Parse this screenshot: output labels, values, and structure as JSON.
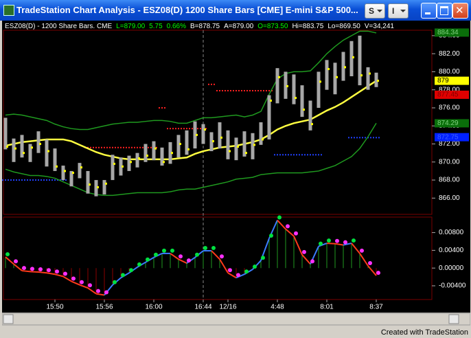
{
  "window": {
    "title": "TradeStation Chart Analysis - ESZ08(D)  1200 Share Bars [CME] E-mini S&P 500...",
    "buttons": [
      "S",
      "I"
    ]
  },
  "header": {
    "items": [
      {
        "text": "ESZ08(D) - 1200 Share Bars. CME",
        "color": "#ffffff"
      },
      {
        "text": "L=879.00",
        "color": "#00ff00"
      },
      {
        "text": "5.75",
        "color": "#00ff00"
      },
      {
        "text": "0.66%",
        "color": "#00ff00"
      },
      {
        "text": "B=878.75",
        "color": "#ffffff"
      },
      {
        "text": "A=879.00",
        "color": "#ffffff"
      },
      {
        "text": "O=873.50",
        "color": "#00ff00"
      },
      {
        "text": "Hi=883.75",
        "color": "#ffffff"
      },
      {
        "text": "Lo=869.50",
        "color": "#ffffff"
      },
      {
        "text": "V=34,241",
        "color": "#ffffff"
      }
    ]
  },
  "footer": "Created with TradeStation",
  "chart_data": [
    {
      "type": "ohlc",
      "categories": [
        null,
        null,
        null,
        null,
        null,
        null,
        "15:50",
        null,
        null,
        null,
        null,
        null,
        "15:56",
        null,
        null,
        null,
        null,
        null,
        "16:00",
        null,
        null,
        null,
        null,
        null,
        "16:44",
        null,
        null,
        "12/16",
        null,
        null,
        null,
        null,
        null,
        "4:48",
        null,
        null,
        null,
        null,
        null,
        "8:01",
        null,
        null,
        null,
        null,
        null,
        "8:37"
      ],
      "high": [
        874.9,
        872.6,
        873.0,
        872.0,
        873.4,
        872.5,
        871.5,
        869.6,
        869.0,
        869.9,
        869.0,
        868.0,
        868.0,
        870.8,
        870.5,
        870.7,
        871.0,
        872.0,
        872.3,
        871.6,
        872.2,
        873.0,
        873.5,
        874.5,
        874.2,
        873.3,
        874.4,
        873.5,
        872.7,
        873.4,
        873.2,
        874.4,
        877.4,
        880.4,
        880.0,
        879.7,
        878.5,
        876.8,
        880.0,
        881.3,
        881.0,
        882.2,
        883.4,
        884.0,
        880.5,
        879.9
      ],
      "low": [
        871.4,
        870.0,
        870.5,
        870.0,
        871.0,
        869.5,
        869.0,
        868.0,
        867.3,
        868.2,
        866.5,
        866.2,
        866.4,
        868.0,
        868.5,
        869.0,
        869.4,
        870.0,
        870.2,
        869.6,
        869.8,
        870.5,
        870.8,
        871.5,
        872.0,
        871.2,
        871.5,
        870.3,
        870.2,
        870.6,
        870.3,
        871.9,
        872.5,
        876.5,
        877.0,
        876.4,
        875.0,
        873.5,
        876.0,
        878.0,
        877.5,
        879.0,
        879.5,
        878.5,
        878.0,
        878.3
      ],
      "close": [
        871.7,
        871.5,
        871.0,
        871.6,
        872.0,
        871.2,
        869.5,
        869.0,
        868.8,
        869.4,
        867.5,
        867.2,
        867.6,
        869.8,
        869.5,
        870.0,
        870.4,
        870.7,
        871.5,
        870.0,
        871.0,
        872.0,
        871.4,
        873.0,
        873.6,
        872.3,
        872.7,
        871.2,
        871.7,
        871.0,
        871.9,
        872.5,
        876.8,
        879.4,
        878.4,
        877.1,
        875.8,
        874.2,
        878.9,
        880.3,
        879.4,
        880.5,
        881.6,
        879.6,
        879.8,
        879.0
      ],
      "bar_color": "#a8a8a8",
      "close_color": "#ffff00",
      "bands": [
        {
          "color": "#1f9a1f",
          "values": [
            875.2,
            875.3,
            875.2,
            875.0,
            874.8,
            874.6,
            874.2,
            873.9,
            873.7,
            873.6,
            873.6,
            873.8,
            874.0,
            874.2,
            874.3,
            874.4,
            874.4,
            874.5,
            874.6,
            874.6,
            874.5,
            874.3,
            874.3,
            874.6,
            874.9,
            874.9,
            875.0,
            875.1,
            875.2,
            875.0,
            875.2,
            875.6,
            877.5,
            879.2,
            879.8,
            880.0,
            880.0,
            880.1,
            881.0,
            882.0,
            882.8,
            883.5,
            884.0,
            884.5,
            884.5,
            884.3
          ]
        },
        {
          "color": "#1f9a1f",
          "values": [
            869.2,
            868.9,
            868.7,
            868.5,
            868.5,
            868.4,
            868.2,
            867.8,
            867.4,
            867.0,
            866.6,
            866.4,
            866.3,
            866.3,
            866.4,
            866.5,
            866.6,
            866.6,
            866.6,
            866.6,
            866.7,
            866.9,
            867.0,
            867.0,
            867.2,
            867.4,
            867.6,
            867.8,
            868.1,
            868.2,
            868.3,
            868.6,
            868.7,
            868.8,
            868.8,
            868.8,
            868.8,
            868.9,
            869.0,
            869.3,
            869.6,
            870.1,
            870.6,
            871.5,
            872.8,
            874.3
          ]
        },
        {
          "color": "#ffff40",
          "values": [
            871.8,
            872.0,
            872.2,
            872.3,
            872.4,
            872.5,
            872.5,
            872.5,
            872.3,
            871.9,
            871.5,
            871.1,
            870.8,
            870.6,
            870.4,
            870.3,
            870.3,
            870.3,
            870.3,
            870.3,
            870.3,
            870.4,
            870.5,
            870.9,
            871.2,
            871.4,
            871.6,
            871.7,
            871.8,
            872.0,
            872.2,
            872.5,
            873.0,
            873.6,
            874.0,
            874.3,
            874.5,
            874.7,
            875.2,
            875.7,
            876.1,
            876.6,
            877.2,
            877.8,
            878.4,
            879.0
          ]
        }
      ],
      "levels": [
        {
          "color": "#ff2020",
          "values": [
            null,
            null,
            null,
            null,
            null,
            null,
            null,
            null,
            null,
            null,
            871.6,
            871.6,
            871.6,
            871.6,
            871.6,
            871.6,
            871.6,
            871.6,
            871.6,
            876.0,
            873.7,
            873.7,
            873.7,
            873.7,
            873.7,
            878.6,
            877.9,
            877.9,
            877.9,
            877.9,
            877.9,
            877.9,
            877.9,
            null,
            null,
            null,
            null,
            null,
            null,
            null,
            null,
            null,
            null,
            null,
            null,
            null
          ]
        },
        {
          "color": "#2040ff",
          "values": [
            868.0,
            868.0,
            868.0,
            868.0,
            868.0,
            868.0,
            868.0,
            868.0,
            null,
            null,
            null,
            null,
            null,
            null,
            null,
            null,
            null,
            null,
            null,
            null,
            null,
            null,
            null,
            null,
            null,
            null,
            null,
            null,
            null,
            null,
            null,
            null,
            null,
            870.8,
            870.8,
            870.8,
            870.8,
            870.8,
            870.8,
            null,
            null,
            null,
            872.7,
            872.7,
            872.7,
            872.7
          ]
        }
      ],
      "price_labels": [
        {
          "value": 884.34,
          "color": "#0a6e0a",
          "text_color": "#7fd07f"
        },
        {
          "value": 879.0,
          "color": "#ffff00",
          "text_color": "#000000"
        },
        {
          "value": 877.45,
          "color": "#e00000",
          "text_color": "#800000"
        },
        {
          "value": 874.29,
          "color": "#0a6e0a",
          "text_color": "#7fd07f"
        },
        {
          "value": 872.75,
          "color": "#0020ff",
          "text_color": "#4060ff"
        }
      ],
      "ylim": [
        864.2,
        884.6
      ],
      "yticks": [
        {
          "value": 866,
          "label": "866.00"
        },
        {
          "value": 868,
          "label": "868.00"
        },
        {
          "value": 870,
          "label": "870.00"
        },
        {
          "value": 872,
          "label": "872.00"
        },
        {
          "value": 874,
          "label": "874.00"
        },
        {
          "value": 876,
          "label": "876.00"
        },
        {
          "value": 878,
          "label": "878.00"
        },
        {
          "value": 880,
          "label": "880.00"
        },
        {
          "value": 882,
          "label": "882.00"
        },
        {
          "value": 884,
          "label": "884.00"
        }
      ]
    },
    {
      "type": "oscillator",
      "values": [
        0.0025,
        0.0009,
        -0.0006,
        -0.0008,
        -0.0009,
        -0.0011,
        -0.0014,
        -0.0019,
        -0.003,
        -0.0038,
        -0.0045,
        -0.0058,
        -0.0061,
        -0.0038,
        -0.0022,
        -0.0011,
        0.0002,
        0.0013,
        0.0024,
        0.0033,
        0.0033,
        0.002,
        0.0011,
        0.0024,
        0.0039,
        0.0039,
        0.002,
        -0.0011,
        -0.0022,
        -0.0014,
        -0.0003,
        0.0017,
        0.0067,
        0.0108,
        0.0088,
        0.0072,
        0.003,
        0.0009,
        0.0049,
        0.0056,
        0.0055,
        0.0052,
        0.0056,
        0.0033,
        0.0005,
        -0.0017
      ],
      "colors": {
        "up": "#3a7cff",
        "down": "#ff3a1a",
        "positive": "#1f9a1f",
        "negative": "#8b0000",
        "dot_up": "#00e040",
        "dot_down": "#ff30ff"
      },
      "ylim": [
        -0.0071,
        0.0115
      ],
      "yticks": [
        {
          "value": 0.008,
          "label": "0.00800"
        },
        {
          "value": 0.004,
          "label": "0.00400"
        },
        {
          "value": 0,
          "label": "0.00000"
        },
        {
          "value": -0.004,
          "label": "-0.00400"
        }
      ]
    }
  ]
}
